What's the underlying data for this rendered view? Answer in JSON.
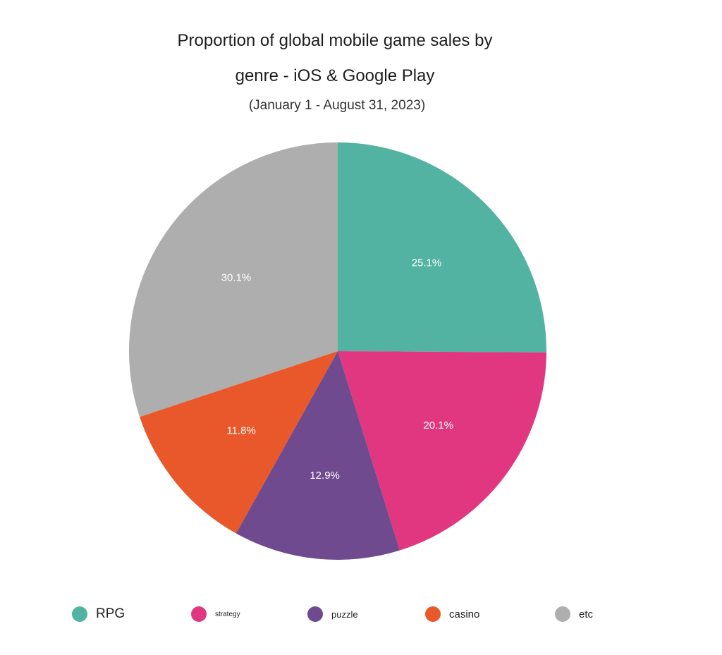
{
  "chart_data": {
    "type": "pie",
    "title_lines": [
      "Proportion of global mobile game sales by",
      "genre - iOS & Google Play"
    ],
    "subtitle": "(January 1 - August 31, 2023)",
    "categories": [
      "RPG",
      "strategy",
      "puzzle",
      "casino",
      "etc"
    ],
    "values": [
      25.1,
      20.1,
      12.9,
      11.8,
      30.1
    ],
    "data_labels": [
      "25.1%",
      "20.1%",
      "12.9%",
      "11.8%",
      "30.1%"
    ],
    "colors": [
      "#52b3a2",
      "#e03780",
      "#6f4a8e",
      "#e8582a",
      "#aeaeae"
    ],
    "start_angle": "12 o'clock",
    "direction": "clockwise",
    "legend_placement": "bottom"
  }
}
